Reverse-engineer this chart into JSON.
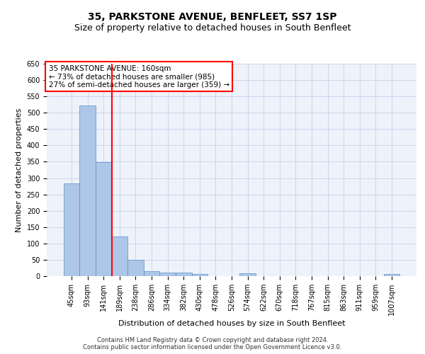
{
  "title1": "35, PARKSTONE AVENUE, BENFLEET, SS7 1SP",
  "title2": "Size of property relative to detached houses in South Benfleet",
  "xlabel": "Distribution of detached houses by size in South Benfleet",
  "ylabel": "Number of detached properties",
  "categories": [
    "45sqm",
    "93sqm",
    "141sqm",
    "189sqm",
    "238sqm",
    "286sqm",
    "334sqm",
    "382sqm",
    "430sqm",
    "478sqm",
    "526sqm",
    "574sqm",
    "622sqm",
    "670sqm",
    "718sqm",
    "767sqm",
    "815sqm",
    "863sqm",
    "911sqm",
    "959sqm",
    "1007sqm"
  ],
  "values": [
    283,
    523,
    348,
    122,
    49,
    16,
    11,
    11,
    7,
    0,
    0,
    8,
    0,
    0,
    0,
    0,
    0,
    0,
    0,
    0,
    7
  ],
  "bar_color": "#aec6e8",
  "bar_edge_color": "#5a8fc2",
  "vline_color": "red",
  "vline_x": 2.5,
  "ylim": [
    0,
    650
  ],
  "yticks": [
    0,
    50,
    100,
    150,
    200,
    250,
    300,
    350,
    400,
    450,
    500,
    550,
    600,
    650
  ],
  "annotation_text": "35 PARKSTONE AVENUE: 160sqm\n← 73% of detached houses are smaller (985)\n27% of semi-detached houses are larger (359) →",
  "annotation_box_color": "white",
  "annotation_box_edgecolor": "red",
  "footer_line1": "Contains HM Land Registry data © Crown copyright and database right 2024.",
  "footer_line2": "Contains public sector information licensed under the Open Government Licence v3.0.",
  "bg_color": "#eef2fb",
  "grid_color": "#c8d0e8",
  "title1_fontsize": 10,
  "title2_fontsize": 9,
  "ylabel_fontsize": 8,
  "xlabel_fontsize": 8,
  "tick_fontsize": 7,
  "annotation_fontsize": 7.5,
  "footer_fontsize": 6
}
